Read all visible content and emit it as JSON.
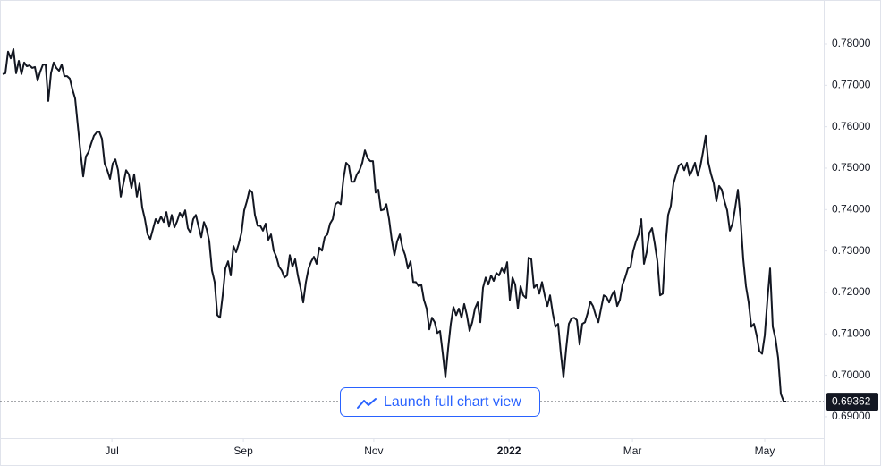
{
  "chart_data": {
    "type": "line",
    "series": [
      {
        "color": "#131722",
        "values": [
          0.7727,
          0.7729,
          0.7781,
          0.7765,
          0.7787,
          0.7729,
          0.7759,
          0.7727,
          0.7755,
          0.7746,
          0.7748,
          0.7742,
          0.7744,
          0.7711,
          0.7733,
          0.775,
          0.775,
          0.7662,
          0.7729,
          0.7755,
          0.7742,
          0.7735,
          0.775,
          0.7722,
          0.7722,
          0.7716,
          0.769,
          0.7668,
          0.7603,
          0.7539,
          0.748,
          0.7528,
          0.7539,
          0.756,
          0.7578,
          0.7586,
          0.7588,
          0.7571,
          0.7511,
          0.7495,
          0.7474,
          0.7511,
          0.7521,
          0.7495,
          0.7431,
          0.7463,
          0.7495,
          0.7485,
          0.7452,
          0.7485,
          0.7431,
          0.7463,
          0.7405,
          0.7377,
          0.734,
          0.7329,
          0.7353,
          0.7377,
          0.7368,
          0.7383,
          0.737,
          0.7394,
          0.7359,
          0.7387,
          0.7357,
          0.7372,
          0.7392,
          0.7381,
          0.7398,
          0.7355,
          0.7344,
          0.7377,
          0.7387,
          0.7359,
          0.7333,
          0.737,
          0.7353,
          0.7323,
          0.7253,
          0.7225,
          0.7145,
          0.7139,
          0.7193,
          0.7258,
          0.7275,
          0.7241,
          0.7312,
          0.7297,
          0.7318,
          0.7344,
          0.7398,
          0.742,
          0.7448,
          0.7441,
          0.7387,
          0.7361,
          0.7361,
          0.7349,
          0.7366,
          0.7327,
          0.734,
          0.7301,
          0.7286,
          0.7262,
          0.7253,
          0.7236,
          0.7241,
          0.729,
          0.7262,
          0.728,
          0.7241,
          0.7211,
          0.7176,
          0.7225,
          0.7258,
          0.7275,
          0.7286,
          0.7269,
          0.7308,
          0.7301,
          0.7333,
          0.734,
          0.7366,
          0.7377,
          0.7413,
          0.7418,
          0.7413,
          0.7474,
          0.7513,
          0.7506,
          0.7467,
          0.7467,
          0.7485,
          0.7495,
          0.7513,
          0.7543,
          0.7524,
          0.7517,
          0.7517,
          0.7441,
          0.7448,
          0.7398,
          0.74,
          0.7413,
          0.7377,
          0.7327,
          0.729,
          0.7323,
          0.734,
          0.7308,
          0.729,
          0.7258,
          0.7275,
          0.7225,
          0.7225,
          0.7215,
          0.7219,
          0.7182,
          0.7161,
          0.7111,
          0.7139,
          0.7128,
          0.7102,
          0.7107,
          0.7053,
          0.6995,
          0.7064,
          0.7124,
          0.7165,
          0.7145,
          0.7161,
          0.7139,
          0.7172,
          0.7145,
          0.7107,
          0.7128,
          0.7161,
          0.7176,
          0.7128,
          0.7211,
          0.7236,
          0.7219,
          0.7241,
          0.7228,
          0.7247,
          0.7241,
          0.7258,
          0.7247,
          0.7273,
          0.7182,
          0.7236,
          0.7219,
          0.7161,
          0.7215,
          0.7193,
          0.7187,
          0.7284,
          0.728,
          0.7211,
          0.7219,
          0.7197,
          0.7225,
          0.7193,
          0.7167,
          0.7193,
          0.715,
          0.7117,
          0.7124,
          0.7053,
          0.6995,
          0.7064,
          0.7124,
          0.7137,
          0.7139,
          0.7133,
          0.7074,
          0.7124,
          0.7128,
          0.715,
          0.7178,
          0.7167,
          0.7145,
          0.7128,
          0.7161,
          0.7193,
          0.7189,
          0.7176,
          0.7193,
          0.7204,
          0.7167,
          0.7182,
          0.7219,
          0.7236,
          0.7258,
          0.7262,
          0.7301,
          0.7323,
          0.734,
          0.7377,
          0.7269,
          0.7297,
          0.7344,
          0.7355,
          0.7318,
          0.7275,
          0.7193,
          0.7197,
          0.7312,
          0.7387,
          0.7409,
          0.7463,
          0.7485,
          0.7506,
          0.7511,
          0.7495,
          0.7513,
          0.7482,
          0.7495,
          0.7513,
          0.7482,
          0.7504,
          0.7539,
          0.7578,
          0.7513,
          0.7485,
          0.7463,
          0.742,
          0.7457,
          0.7448,
          0.742,
          0.7398,
          0.7349,
          0.7366,
          0.7405,
          0.7448,
          0.7377,
          0.728,
          0.7215,
          0.7176,
          0.7117,
          0.7124,
          0.7096,
          0.7059,
          0.7052,
          0.7096,
          0.7182,
          0.7258,
          0.7117,
          0.7089,
          0.7042,
          0.6955,
          0.6938,
          0.6936
        ]
      }
    ],
    "xlim": [
      -1,
      306
    ],
    "xticks": [
      {
        "value": 40.7,
        "label": "Jul"
      },
      {
        "value": 89.7,
        "label": "Sep"
      },
      {
        "value": 138.3,
        "label": "Nov"
      },
      {
        "value": 188.7,
        "label": "2022"
      },
      {
        "value": 234.7,
        "label": "Mar"
      },
      {
        "value": 284,
        "label": "May"
      }
    ],
    "ylim": [
      0.6848,
      0.7895
    ],
    "yticks": [
      {
        "value": 0.69,
        "label": "0.69000"
      },
      {
        "value": 0.7,
        "label": "0.70000"
      },
      {
        "value": 0.71,
        "label": "0.71000"
      },
      {
        "value": 0.72,
        "label": "0.72000"
      },
      {
        "value": 0.73,
        "label": "0.73000"
      },
      {
        "value": 0.74,
        "label": "0.74000"
      },
      {
        "value": 0.75,
        "label": "0.75000"
      },
      {
        "value": 0.76,
        "label": "0.76000"
      },
      {
        "value": 0.77,
        "label": "0.77000"
      },
      {
        "value": 0.78,
        "label": "0.78000"
      }
    ],
    "last_price": 0.69362,
    "button": "Launch full chart view"
  }
}
